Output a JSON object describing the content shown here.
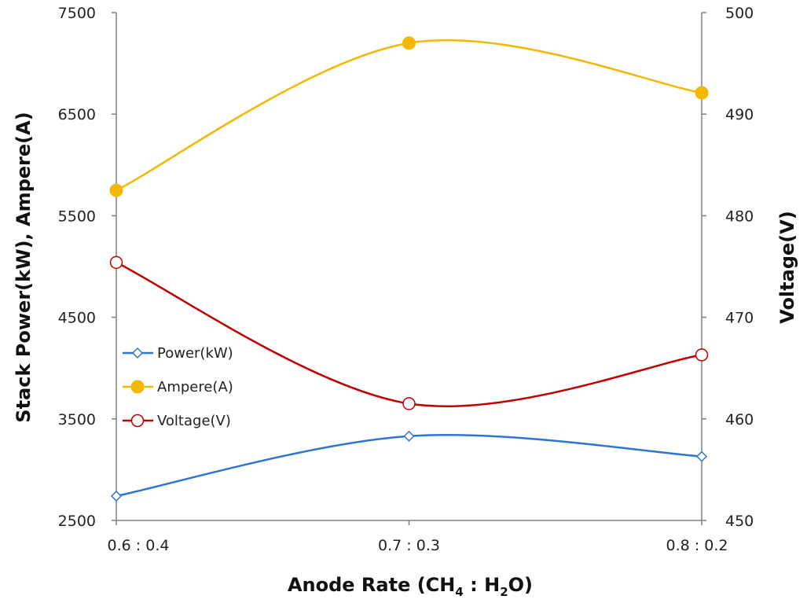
{
  "chart_data": {
    "type": "line",
    "categories": [
      "0.6 : 0.4",
      "0.7 : 0.3",
      "0.8 : 0.2"
    ],
    "xlabel": {
      "main": "Anode Rate (CH",
      "sub1": "4",
      "mid": " : H",
      "sub2": "2",
      "end": "O)"
    },
    "ylabel_left": "Stack Power(kW),  Ampere(A)",
    "ylabel_right": "Voltage(V)",
    "ylim_left": [
      2500,
      7500
    ],
    "yticks_left": [
      2500,
      3500,
      4500,
      5500,
      6500,
      7500
    ],
    "ylim_right": [
      450,
      500
    ],
    "yticks_right": [
      450,
      460,
      470,
      480,
      490,
      500
    ],
    "legend_position": "left",
    "series": [
      {
        "name": "Power(kW)",
        "axis": "left",
        "values": [
          2740,
          3330,
          3130
        ],
        "color": "#2e75d0",
        "marker": "open-diamond"
      },
      {
        "name": "Ampere(A)",
        "axis": "left",
        "values": [
          5750,
          7200,
          6710
        ],
        "color": "#f5b800",
        "marker": "filled-circle"
      },
      {
        "name": "Voltage(V)",
        "axis": "right",
        "values": [
          475.4,
          461.5,
          466.3
        ],
        "color": "#c00000",
        "marker": "open-circle"
      }
    ]
  }
}
